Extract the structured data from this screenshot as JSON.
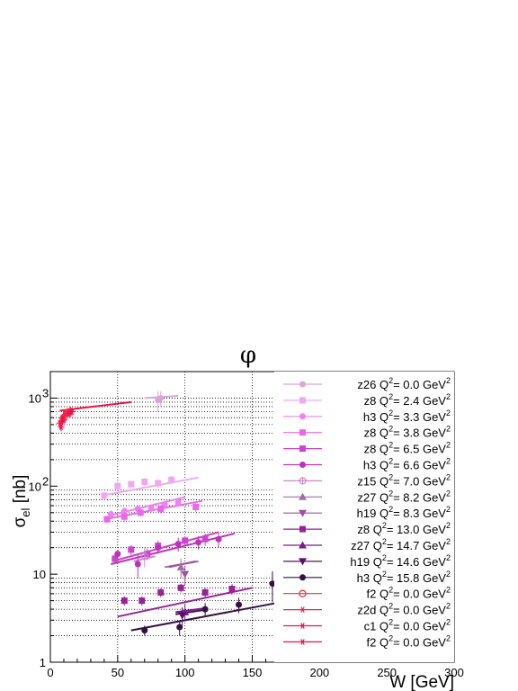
{
  "chart_data": {
    "type": "scatter",
    "title": "φ",
    "xlabel": "W [GeV]",
    "ylabel": "σ_el [nb]",
    "ylabel_main": "σ",
    "ylabel_sub": "el",
    "ylabel_unit": " [nb]",
    "xlim": [
      0,
      300
    ],
    "ylim": [
      1,
      2000
    ],
    "yscale": "log",
    "x_ticks": [
      "0",
      "50",
      "100",
      "150",
      "200",
      "250",
      "300"
    ],
    "x_tick_values": [
      0,
      50,
      100,
      150,
      200,
      250,
      300
    ],
    "y_ticks": [
      "1",
      "10",
      "10²"
    ],
    "y_tick_values": [
      1,
      10,
      100
    ],
    "y_tick_main": [
      "1",
      "10",
      "10"
    ],
    "y_tick_exp": [
      "",
      "",
      "2"
    ],
    "y_tick_extra": [
      "10³"
    ],
    "y_tick_extra_values": [
      1000
    ],
    "y_tick_extra_main": [
      "10"
    ],
    "y_tick_extra_exp": [
      "3"
    ],
    "vertical_grid": [
      50,
      100,
      150
    ],
    "horizontal_dotted": [
      2,
      3,
      4,
      5,
      6,
      7,
      8,
      9,
      20,
      30,
      40,
      50,
      60,
      70,
      80,
      90,
      200,
      300,
      400,
      500,
      600,
      700,
      800,
      900,
      1000
    ],
    "legend_position": "right",
    "series": [
      {
        "name": "z26 Q²=  0.0 GeV²",
        "label_main": "z26 Q",
        "label_tail": "=  0.0 GeV",
        "color": "#d6a8d6",
        "marker": "circle",
        "points": [
          [
            80,
            950
          ],
          [
            82,
            1000
          ]
        ],
        "errors": [
          250,
          200
        ],
        "fit": [
          [
            70,
            1000
          ],
          [
            95,
            1060
          ]
        ]
      },
      {
        "name": "z8 Q²=  2.4 GeV²",
        "label_main": "z8 Q",
        "label_tail": "=  2.4 GeV",
        "color": "#f0a8f0",
        "marker": "square",
        "points": [
          [
            40,
            78
          ],
          [
            50,
            100
          ],
          [
            60,
            105
          ],
          [
            70,
            112
          ],
          [
            80,
            108
          ],
          [
            90,
            118
          ]
        ],
        "errors": [
          8,
          12,
          10,
          12,
          12,
          14
        ],
        "fit": [
          [
            38,
            78
          ],
          [
            110,
            125
          ]
        ]
      },
      {
        "name": "h3 Q²=  3.3 GeV²",
        "label_main": "h3 Q",
        "label_tail": "=  3.3 GeV",
        "color": "#ee82ee",
        "marker": "circle",
        "points": [
          [
            45,
            48
          ],
          [
            55,
            52
          ],
          [
            65,
            55
          ],
          [
            75,
            56
          ],
          [
            85,
            62
          ],
          [
            95,
            65
          ]
        ],
        "errors": [
          5,
          5,
          5,
          6,
          6,
          7
        ],
        "fit": [
          [
            43,
            46
          ],
          [
            100,
            75
          ]
        ]
      },
      {
        "name": "z8 Q²=  3.8 GeV²",
        "label_main": "z8 Q",
        "label_tail": "=  3.8 GeV",
        "color": "#e868e8",
        "marker": "square",
        "points": [
          [
            42,
            42
          ],
          [
            55,
            45
          ],
          [
            67,
            50
          ],
          [
            82,
            55
          ],
          [
            108,
            58
          ]
        ],
        "errors": [
          4,
          5,
          5,
          6,
          7
        ],
        "fit": [
          [
            40,
            42
          ],
          [
            113,
            68
          ]
        ]
      },
      {
        "name": "z8 Q²=  6.5 GeV²",
        "label_main": "z8 Q",
        "label_tail": "=  6.5 GeV",
        "color": "#cc44cc",
        "marker": "square",
        "points": [
          [
            48,
            15
          ],
          [
            60,
            19
          ],
          [
            72,
            17
          ],
          [
            80,
            21
          ],
          [
            100,
            24
          ],
          [
            115,
            25
          ]
        ],
        "errors": [
          2,
          2.5,
          2.5,
          3,
          3,
          4
        ],
        "fit": [
          [
            46,
            14
          ],
          [
            125,
            30
          ]
        ]
      },
      {
        "name": "h3 Q²=  6.6 GeV²",
        "label_main": "h3 Q",
        "label_tail": "=  6.6 GeV",
        "color": "#bb33bb",
        "marker": "circle",
        "points": [
          [
            50,
            17
          ],
          [
            65,
            13
          ],
          [
            80,
            20
          ],
          [
            95,
            22
          ],
          [
            110,
            23
          ],
          [
            125,
            25
          ]
        ],
        "errors": [
          2,
          4,
          3,
          4,
          4,
          5
        ],
        "fit": [
          [
            45,
            13
          ],
          [
            137,
            29
          ]
        ]
      },
      {
        "name": "z15 Q²=  7.0 GeV²",
        "label_main": "z15 Q",
        "label_tail": "=  7.0 GeV",
        "color": "#cc88cc",
        "marker": "openplus",
        "points": [
          [
            70,
            16
          ]
        ],
        "errors": [
          4
        ],
        "fit": [
          [
            62,
            14
          ],
          [
            78,
            16
          ]
        ]
      },
      {
        "name": "z27 Q²=  8.2 GeV²",
        "label_main": "z27 Q",
        "label_tail": "=  8.2 GeV",
        "color": "#a070a0",
        "marker": "triangle",
        "points": [
          [
            97,
            12
          ]
        ],
        "errors": [
          3
        ],
        "fit": [
          [
            85,
            12
          ],
          [
            110,
            14
          ]
        ]
      },
      {
        "name": "h19 Q²=  8.3 GeV²",
        "label_main": "h19 Q",
        "label_tail": "=  8.3 GeV",
        "color": "#a050a0",
        "marker": "triangledown",
        "points": [
          [
            100,
            10
          ]
        ],
        "errors": [
          2.5
        ],
        "fit": [
          [
            88,
            12
          ],
          [
            108,
            14
          ]
        ]
      },
      {
        "name": "z8 Q²= 13.0 GeV²",
        "label_main": "z8 Q",
        "label_tail": "= 13.0 GeV",
        "color": "#992299",
        "marker": "square",
        "points": [
          [
            55,
            5
          ],
          [
            68,
            5
          ],
          [
            82,
            6.2
          ],
          [
            97,
            7
          ],
          [
            115,
            6.2
          ],
          [
            135,
            6.8
          ]
        ],
        "errors": [
          0.6,
          0.6,
          0.7,
          0.8,
          0.8,
          0.9
        ],
        "fit": [
          [
            50,
            3.3
          ],
          [
            150,
            7
          ]
        ]
      },
      {
        "name": "z27 Q²= 14.7 GeV²",
        "label_main": "z27 Q",
        "label_tail": "= 14.7 GeV",
        "color": "#771f88",
        "marker": "triangle",
        "points": [
          [
            100,
            3.7
          ]
        ],
        "errors": [
          0.8
        ],
        "fit": [
          [
            93,
            3.7
          ],
          [
            115,
            4.1
          ]
        ]
      },
      {
        "name": "h19 Q²= 14.6 GeV²",
        "label_main": "h19 Q",
        "label_tail": "= 14.6 GeV",
        "color": "#551166",
        "marker": "triangledown",
        "points": [
          [
            98,
            3.4
          ]
        ],
        "errors": [
          0.8
        ],
        "fit": [
          [
            93,
            3.5
          ],
          [
            113,
            3.9
          ]
        ]
      },
      {
        "name": "h3 Q²= 15.8 GeV²",
        "label_main": "h3 Q",
        "label_tail": "= 15.8 GeV",
        "color": "#331144",
        "marker": "circle",
        "points": [
          [
            70,
            2.3
          ],
          [
            96,
            2.5
          ],
          [
            115,
            4
          ],
          [
            140,
            4.5
          ],
          [
            165,
            7.8
          ]
        ],
        "errors": [
          0.3,
          0.5,
          0.7,
          0.9,
          3
        ],
        "fit": [
          [
            60,
            2.3
          ],
          [
            180,
            5.1
          ]
        ]
      },
      {
        "name": "f2 Q²=  0.0 GeV²",
        "label_main": "f2 Q",
        "label_tail": "=  0.0 GeV",
        "color": "#ee3333",
        "marker": "opencircle",
        "points": [
          [
            10,
            600
          ],
          [
            12,
            680
          ]
        ],
        "errors": [
          60,
          70
        ],
        "fit": []
      },
      {
        "name": "z2d Q²=  0.0 GeV²",
        "label_main": "z2d Q",
        "label_tail": "=  0.0 GeV",
        "color": "#ee2244",
        "marker": "star",
        "points": [
          [
            7,
            520
          ],
          [
            9,
            600
          ],
          [
            11,
            650
          ],
          [
            13,
            700
          ],
          [
            15,
            720
          ]
        ],
        "errors": [
          60,
          60,
          70,
          70,
          80
        ],
        "fit": []
      },
      {
        "name": "c1 Q²=  0.0 GeV²",
        "label_main": "c1 Q",
        "label_tail": "=  0.0 GeV",
        "color": "#ee1155",
        "marker": "star",
        "points": [
          [
            8,
            470
          ],
          [
            10,
            560
          ],
          [
            14,
            660
          ]
        ],
        "errors": [
          50,
          60,
          60
        ],
        "fit": []
      },
      {
        "name": "f2 Q²=  0.0 GeV²",
        "label_main": "f2 Q",
        "label_tail": "=  0.0 GeV",
        "color": "#ee1144",
        "marker": "star",
        "points": [
          [
            9,
            560
          ],
          [
            16,
            700
          ]
        ],
        "errors": [
          60,
          80
        ],
        "fit": [
          [
            7,
            720
          ],
          [
            60,
            900
          ]
        ]
      }
    ]
  }
}
